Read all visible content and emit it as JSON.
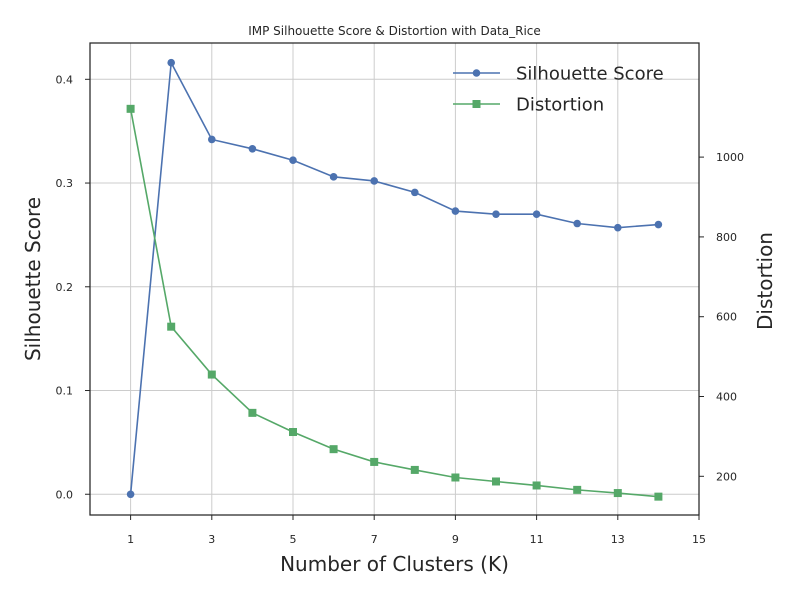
{
  "chart_data": {
    "type": "line",
    "title": "IMP Silhouette Score & Distortion with Data_Rice",
    "xlabel": "Number of Clusters (K)",
    "ylabel_left": "Silhouette Score",
    "ylabel_right": "Distortion",
    "x": [
      1,
      2,
      3,
      4,
      5,
      6,
      7,
      8,
      9,
      10,
      11,
      12,
      13,
      14
    ],
    "xlim": [
      0,
      15
    ],
    "xticks": [
      1,
      3,
      5,
      7,
      9,
      11,
      13,
      15
    ],
    "ylim_left": [
      -0.02,
      0.435
    ],
    "yticks_left": [
      0.0,
      0.1,
      0.2,
      0.3,
      0.4
    ],
    "ytick_labels_left": [
      "0.0",
      "0.1",
      "0.2",
      "0.3",
      "0.4"
    ],
    "ylim_right": [
      103,
      1286
    ],
    "yticks_right": [
      200,
      400,
      600,
      800,
      1000
    ],
    "grid": true,
    "legend_position": "top-right",
    "series": [
      {
        "name": "Silhouette Score",
        "axis": "left",
        "color": "#4c72b0",
        "marker": "circle",
        "values": [
          0.0,
          0.416,
          0.342,
          0.333,
          0.322,
          0.306,
          0.302,
          0.291,
          0.273,
          0.27,
          0.27,
          0.261,
          0.257,
          0.26
        ]
      },
      {
        "name": "Distortion",
        "axis": "right",
        "color": "#55a868",
        "marker": "square",
        "values": [
          1121,
          575,
          455,
          359,
          311,
          268,
          236,
          216,
          197,
          187,
          177,
          166,
          158,
          149
        ]
      }
    ]
  }
}
